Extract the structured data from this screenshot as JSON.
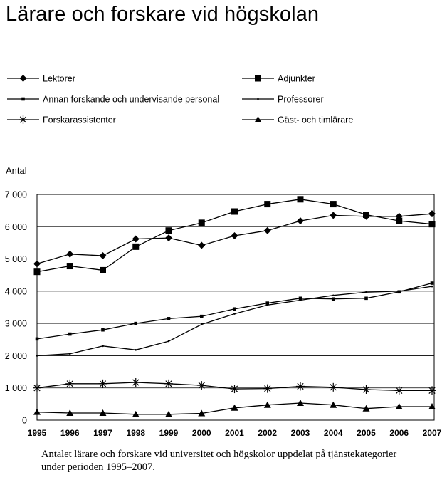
{
  "chart_data": {
    "type": "line",
    "title": "Lärare och forskare vid högskolan",
    "ylabel": "Antal",
    "xlabel": "",
    "x": [
      "1995",
      "1996",
      "1997",
      "1998",
      "1999",
      "2000",
      "2001",
      "2002",
      "2003",
      "2004",
      "2005",
      "2006",
      "2007"
    ],
    "ylim": [
      0,
      7000
    ],
    "yticks": [
      0,
      1000,
      2000,
      3000,
      4000,
      5000,
      6000,
      7000
    ],
    "ytick_labels": [
      "0",
      "1 000",
      "2 000",
      "3 000",
      "4 000",
      "5 000",
      "6 000",
      "7 000"
    ],
    "grid": "horizontal",
    "legend_position": "top",
    "series": [
      {
        "name": "Lektorer",
        "marker": "diamond",
        "values": [
          4850,
          5150,
          5100,
          5620,
          5650,
          5420,
          5720,
          5880,
          6180,
          6350,
          6320,
          6320,
          6400
        ]
      },
      {
        "name": "Adjunkter",
        "marker": "square",
        "values": [
          4600,
          4780,
          4650,
          5380,
          5880,
          6120,
          6470,
          6700,
          6850,
          6700,
          6370,
          6180,
          6080
        ]
      },
      {
        "name": "Annan forskande och undervisande personal",
        "marker": "small-square",
        "values": [
          2520,
          2670,
          2800,
          3000,
          3150,
          3220,
          3450,
          3630,
          3780,
          3760,
          3780,
          3980,
          4250
        ]
      },
      {
        "name": "Professorer",
        "marker": "dot",
        "values": [
          2000,
          2060,
          2300,
          2180,
          2450,
          2970,
          3300,
          3570,
          3720,
          3870,
          3970,
          4000,
          4150
        ]
      },
      {
        "name": "Forskarassistenter",
        "marker": "asterisk",
        "values": [
          1000,
          1130,
          1130,
          1170,
          1130,
          1080,
          970,
          980,
          1050,
          1020,
          950,
          920,
          920
        ]
      },
      {
        "name": "Gäst- och timlärare",
        "marker": "triangle",
        "values": [
          250,
          220,
          220,
          180,
          180,
          210,
          380,
          470,
          530,
          470,
          360,
          420,
          420
        ]
      }
    ]
  },
  "caption": {
    "line1": "Antalet lärare och forskare vid universitet och högskolor uppdelat på tjänstekategorier",
    "line2": "under perioden 1995–2007."
  }
}
